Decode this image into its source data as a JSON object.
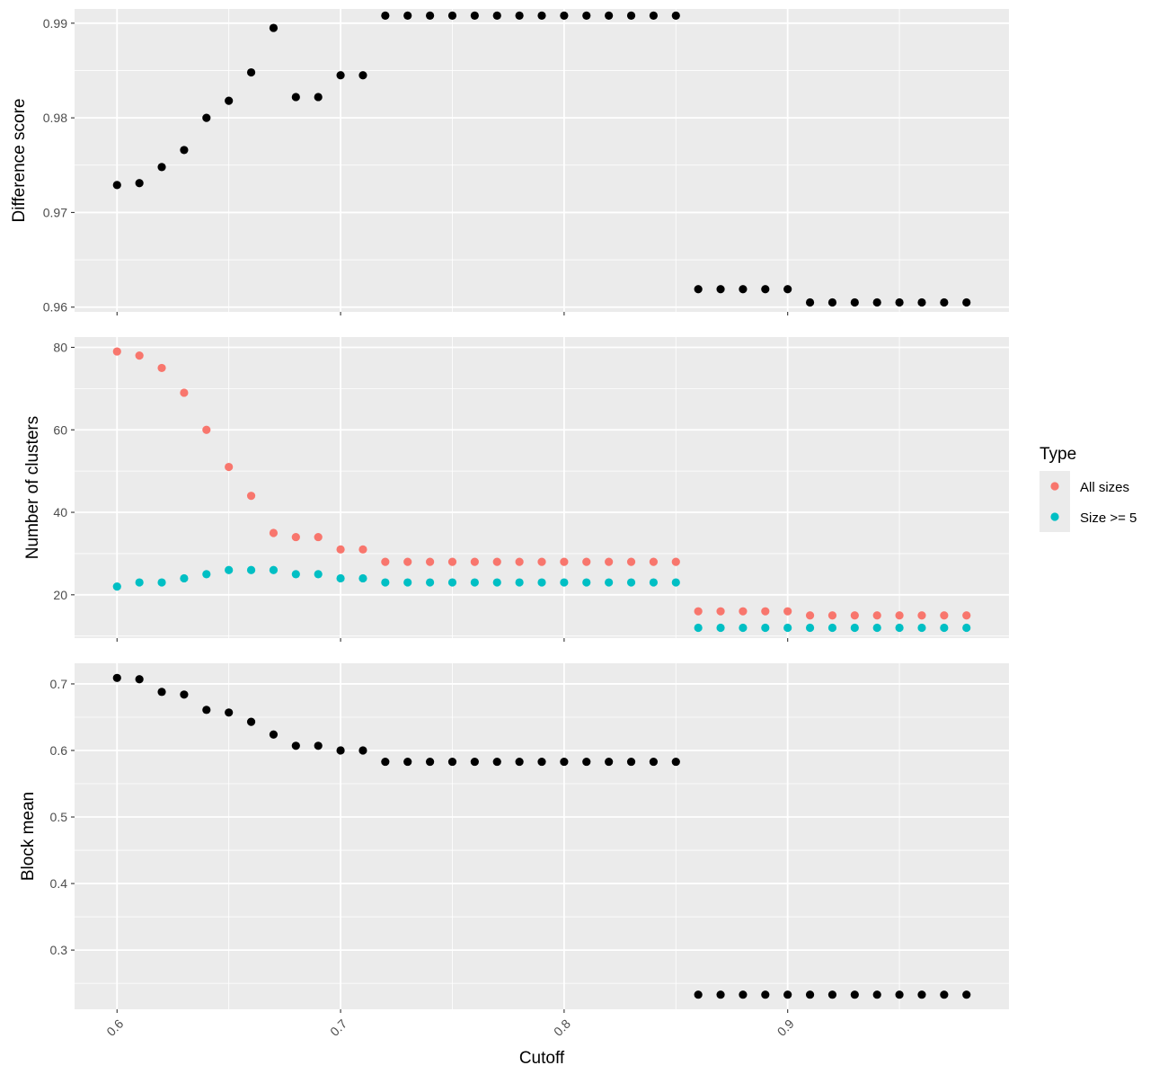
{
  "chart_data": [
    {
      "type": "scatter",
      "ylabel": "Difference score",
      "ylim": [
        0.9595,
        0.9915
      ],
      "yticks": [
        "0.96",
        "0.97",
        "0.98",
        "0.99"
      ],
      "series": [
        {
          "color": "#000000",
          "values": [
            0.9729,
            0.9731,
            0.9748,
            0.9766,
            0.98,
            0.9818,
            0.9848,
            0.9895,
            0.9822,
            0.9822,
            0.9845,
            0.9845,
            0.9908,
            0.9908,
            0.9908,
            0.9908,
            0.9908,
            0.9908,
            0.9908,
            0.9908,
            0.9908,
            0.9908,
            0.9908,
            0.9908,
            0.9908,
            0.9908,
            0.9619,
            0.9619,
            0.9619,
            0.9619,
            0.9619,
            0.9605,
            0.9605,
            0.9605,
            0.9605,
            0.9605,
            0.9605,
            0.9605,
            0.9605
          ]
        }
      ]
    },
    {
      "type": "scatter",
      "ylabel": "Number of clusters",
      "ylim": [
        9.5,
        82.5
      ],
      "yticks": [
        "20",
        "40",
        "60",
        "80"
      ],
      "series": [
        {
          "name": "All sizes",
          "color": "#F8766D",
          "values": [
            79,
            78,
            75,
            69,
            60,
            51,
            44,
            35,
            34,
            34,
            31,
            31,
            28,
            28,
            28,
            28,
            28,
            28,
            28,
            28,
            28,
            28,
            28,
            28,
            28,
            28,
            16,
            16,
            16,
            16,
            16,
            15,
            15,
            15,
            15,
            15,
            15,
            15,
            15
          ]
        },
        {
          "name": "Size >= 5",
          "color": "#00BFC4",
          "values": [
            22,
            23,
            23,
            24,
            25,
            26,
            26,
            26,
            25,
            25,
            24,
            24,
            23,
            23,
            23,
            23,
            23,
            23,
            23,
            23,
            23,
            23,
            23,
            23,
            23,
            23,
            12,
            12,
            12,
            12,
            12,
            12,
            12,
            12,
            12,
            12,
            12,
            12,
            12
          ]
        }
      ]
    },
    {
      "type": "scatter",
      "ylabel": "Block mean",
      "ylim": [
        0.211,
        0.731
      ],
      "yticks": [
        "0.3",
        "0.4",
        "0.5",
        "0.6",
        "0.7"
      ],
      "series": [
        {
          "color": "#000000",
          "values": [
            0.709,
            0.707,
            0.688,
            0.684,
            0.661,
            0.657,
            0.643,
            0.624,
            0.607,
            0.607,
            0.6,
            0.6,
            0.583,
            0.583,
            0.583,
            0.583,
            0.583,
            0.583,
            0.583,
            0.583,
            0.583,
            0.583,
            0.583,
            0.583,
            0.583,
            0.583,
            0.233,
            0.233,
            0.233,
            0.233,
            0.233,
            0.233,
            0.233,
            0.233,
            0.233,
            0.233,
            0.233,
            0.233,
            0.233
          ]
        }
      ]
    }
  ],
  "shared_x": {
    "xlabel": "Cutoff",
    "xlim": [
      0.581,
      0.999
    ],
    "xticks": [
      "0.6",
      "0.7",
      "0.8",
      "0.9"
    ],
    "x": [
      0.6,
      0.61,
      0.62,
      0.63,
      0.64,
      0.65,
      0.66,
      0.67,
      0.68,
      0.69,
      0.7,
      0.71,
      0.72,
      0.73,
      0.74,
      0.75,
      0.76,
      0.77,
      0.78,
      0.79,
      0.8,
      0.81,
      0.82,
      0.83,
      0.84,
      0.85,
      0.86,
      0.87,
      0.88,
      0.89,
      0.9,
      0.91,
      0.92,
      0.93,
      0.94,
      0.95,
      0.96,
      0.97,
      0.98
    ]
  },
  "legend": {
    "title": "Type",
    "placement": "right",
    "items": [
      {
        "label": "All sizes",
        "color": "#F8766D"
      },
      {
        "label": "Size >= 5",
        "color": "#00BFC4"
      }
    ]
  },
  "theme": {
    "panel_bg": "#EBEBEB",
    "grid": "#FFFFFF",
    "grid_visible": true
  }
}
